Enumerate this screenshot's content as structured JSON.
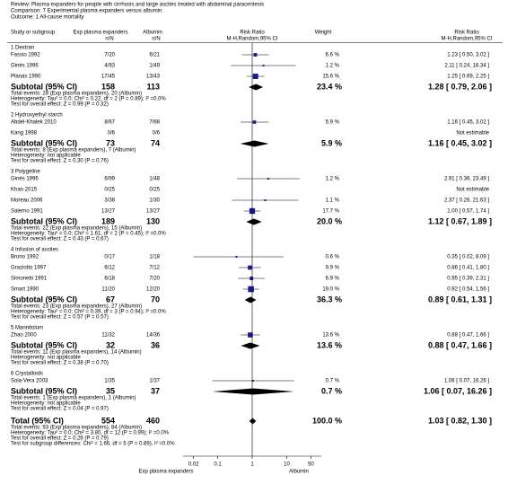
{
  "chart_data": {
    "type": "forest",
    "header": [
      "Review:  Plasma expanders for people with cirrhosis and large ascites treated with abdominal paracentesis",
      "Comparison:  7 Experimental plasma expanders versus albumin",
      "Outcome:  1 All-cause mortality"
    ],
    "columns": {
      "study": "Study or subgroup",
      "exp": [
        "Exp plasma expanders",
        "n/N"
      ],
      "ctl": [
        "Albumin",
        "n/N"
      ],
      "plot": [
        "Risk Ratio",
        "M-H,Random,95% CI"
      ],
      "weight": "Weight",
      "rr": [
        "Risk Ratio",
        "M-H,Random,95% CI"
      ]
    },
    "color": "#1a1a8c",
    "xlim": [
      0.01,
      100
    ],
    "xticks": [
      0.02,
      0.1,
      1,
      10,
      50
    ],
    "xlabels": [
      "Exp plasma expanders",
      "Albumin"
    ],
    "groups": [
      {
        "title": "1 Dextran",
        "studies": [
          {
            "name": "Fassio 1992",
            "exp": "7/20",
            "ctl": "6/21",
            "weight": "6.6 %",
            "w": 6.6,
            "rr_label": "1.23 [ 0.50, 3.02 ]",
            "rr": 1.23,
            "lo": 0.5,
            "hi": 3.02
          },
          {
            "name": "Ginés 1996",
            "exp": "4/93",
            "ctl": "1/49",
            "weight": "1.2 %",
            "w": 1.2,
            "rr_label": "2.11 [ 0.24, 18.34 ]",
            "rr": 2.11,
            "lo": 0.24,
            "hi": 18.34
          },
          {
            "name": "Planas 1990",
            "exp": "17/45",
            "ctl": "13/43",
            "weight": "15.6 %",
            "w": 15.6,
            "rr_label": "1.25 [ 0.69, 2.25 ]",
            "rr": 1.25,
            "lo": 0.69,
            "hi": 2.25
          }
        ],
        "subtotal": {
          "label": "Subtotal (95% CI)",
          "exp": 158,
          "ctl": 113,
          "weight": "23.4 %",
          "w": 23.4,
          "rr_label": "1.28 [ 0.79, 2.06 ]",
          "rr": 1.28,
          "lo": 0.79,
          "hi": 2.06
        },
        "notes": [
          "Total events: 28 (Exp plasma expanders), 20 (Albumin)",
          "Heterogeneity: Tau² = 0.0; Chi² = 0.22, df = 2 (P = 0.89); I² =0.0%",
          "Test for overall effect: Z = 0.99 (P = 0.32)"
        ]
      },
      {
        "title": "2 Hydroxyethyl starch",
        "studies": [
          {
            "name": "Abdel-Khalek 2010",
            "exp": "8/67",
            "ctl": "7/68",
            "weight": "5.9 %",
            "w": 5.9,
            "rr_label": "1.16 [ 0.45, 3.02 ]",
            "rr": 1.16,
            "lo": 0.45,
            "hi": 3.02
          },
          {
            "name": "Kang 1998",
            "exp": "0/6",
            "ctl": "0/6",
            "rr_label": "Not estimable"
          }
        ],
        "subtotal": {
          "label": "Subtotal (95% CI)",
          "exp": 73,
          "ctl": 74,
          "weight": "5.9 %",
          "w": 5.9,
          "rr_label": "1.16 [ 0.45, 3.02 ]",
          "rr": 1.16,
          "lo": 0.45,
          "hi": 3.02
        },
        "notes": [
          "Total events: 8 (Exp plasma expanders), 7 (Albumin)",
          "Heterogeneity: not applicable",
          "Test for overall effect: Z = 0.30 (P = 0.76)"
        ]
      },
      {
        "title": "3 Polygeline",
        "studies": [
          {
            "name": "Ginés 1996",
            "exp": "6/99",
            "ctl": "1/48",
            "weight": "1.2 %",
            "w": 1.2,
            "rr_label": "2.91 [ 0.36, 23.49 ]",
            "rr": 2.91,
            "lo": 0.36,
            "hi": 23.49
          },
          {
            "name": "Khan 2015",
            "exp": "0/25",
            "ctl": "0/25",
            "rr_label": "Not estimable"
          },
          {
            "name": "Moreau 2006",
            "exp": "3/38",
            "ctl": "1/30",
            "weight": "1.1 %",
            "w": 1.1,
            "rr_label": "2.37 [ 0.26, 21.63 ]",
            "rr": 2.37,
            "lo": 0.26,
            "hi": 21.63
          },
          {
            "name": "Salerno 1991",
            "exp": "13/27",
            "ctl": "13/27",
            "weight": "17.7 %",
            "w": 17.7,
            "rr_label": "1.00 [ 0.57, 1.74 ]",
            "rr": 1.0,
            "lo": 0.57,
            "hi": 1.74
          }
        ],
        "subtotal": {
          "label": "Subtotal (95% CI)",
          "exp": 189,
          "ctl": 130,
          "weight": "20.0 %",
          "w": 20.0,
          "rr_label": "1.12 [ 0.67, 1.89 ]",
          "rr": 1.12,
          "lo": 0.67,
          "hi": 1.89
        },
        "notes": [
          "Total events: 22 (Exp plasma expanders), 15 (Albumin)",
          "Heterogeneity: Tau² = 0.0; Chi² = 1.61, df = 2 (P = 0.45); I² =0.0%",
          "Test for overall effect: Z = 0.43 (P = 0.67)"
        ]
      },
      {
        "title": "4 Infusion of ascites",
        "studies": [
          {
            "name": "Bruno 1992",
            "exp": "0/17",
            "ctl": "1/18",
            "weight": "0.6 %",
            "w": 0.6,
            "rr_label": "0.35 [ 0.02, 8.09 ]",
            "rr": 0.35,
            "lo": 0.02,
            "hi": 8.09
          },
          {
            "name": "Graziotto 1997",
            "exp": "6/12",
            "ctl": "7/12",
            "weight": "9.9 %",
            "w": 9.9,
            "rr_label": "0.86 [ 0.41, 1.80 ]",
            "rr": 0.86,
            "lo": 0.41,
            "hi": 1.8
          },
          {
            "name": "Simonetti 1991",
            "exp": "6/18",
            "ctl": "7/20",
            "weight": "6.9 %",
            "w": 6.9,
            "rr_label": "0.95 [ 0.39, 2.31 ]",
            "rr": 0.95,
            "lo": 0.39,
            "hi": 2.31
          },
          {
            "name": "Smart 1990",
            "exp": "11/20",
            "ctl": "12/20",
            "weight": "19.0 %",
            "w": 19.0,
            "rr_label": "0.92 [ 0.54, 1.56 ]",
            "rr": 0.92,
            "lo": 0.54,
            "hi": 1.56
          }
        ],
        "subtotal": {
          "label": "Subtotal (95% CI)",
          "exp": 67,
          "ctl": 70,
          "weight": "36.3 %",
          "w": 36.3,
          "rr_label": "0.89 [ 0.61, 1.31 ]",
          "rr": 0.89,
          "lo": 0.61,
          "hi": 1.31
        },
        "notes": [
          "Total events: 23 (Exp plasma expanders), 27 (Albumin)",
          "Heterogeneity: Tau² = 0.0; Chi² = 0.39, df = 3 (P = 0.94); I² =0.0%",
          "Test for overall effect: Z = 0.57 (P = 0.57)"
        ]
      },
      {
        "title": "5 Mannitolum",
        "studies": [
          {
            "name": "Zhao 2000",
            "exp": "11/32",
            "ctl": "14/36",
            "weight": "13.6 %",
            "w": 13.6,
            "rr_label": "0.88 [ 0.47, 1.66 ]",
            "rr": 0.88,
            "lo": 0.47,
            "hi": 1.66
          }
        ],
        "subtotal": {
          "label": "Subtotal (95% CI)",
          "exp": 32,
          "ctl": 36,
          "weight": "13.6 %",
          "w": 13.6,
          "rr_label": "0.88 [ 0.47, 1.66 ]",
          "rr": 0.88,
          "lo": 0.47,
          "hi": 1.66
        },
        "notes": [
          "Total events: 11 (Exp plasma expanders), 14 (Albumin)",
          "Heterogeneity: not applicable",
          "Test for overall effect: Z = 0.38 (P = 0.70)"
        ]
      },
      {
        "title": "6 Crystalloids",
        "studies": [
          {
            "name": "Sola-Vera 2003",
            "exp": "1/35",
            "ctl": "1/37",
            "weight": "0.7 %",
            "w": 0.7,
            "rr_label": "1.06 [ 0.07, 16.26 ]",
            "rr": 1.06,
            "lo": 0.07,
            "hi": 16.26
          }
        ],
        "subtotal": {
          "label": "Subtotal (95% CI)",
          "exp": 35,
          "ctl": 37,
          "weight": "0.7 %",
          "w": 0.7,
          "rr_label": "1.06 [ 0.07, 16.26 ]",
          "rr": 1.06,
          "lo": 0.07,
          "hi": 16.26
        },
        "notes": [
          "Total events: 1 (Exp plasma expanders), 1 (Albumin)",
          "Heterogeneity: not applicable",
          "Test for overall effect: Z = 0.04 (P = 0.97)"
        ]
      }
    ],
    "total": {
      "label": "Total (95% CI)",
      "exp": 554,
      "ctl": 460,
      "weight": "100.0 %",
      "w": 100.0,
      "rr_label": "1.03 [ 0.82, 1.30 ]",
      "rr": 1.03,
      "lo": 0.82,
      "hi": 1.3,
      "notes": [
        "Total events: 93 (Exp plasma expanders), 84 (Albumin)",
        "Heterogeneity: Tau² = 0.0; Chi² = 3.80, df = 12 (P = 0.99); I² =0.0%",
        "Test for overall effect: Z = 0.26 (P = 0.79)",
        "Test for subgroup differences: Chi² = 1.66, df = 5 (P = 0.89), I² =0.0%"
      ]
    }
  }
}
